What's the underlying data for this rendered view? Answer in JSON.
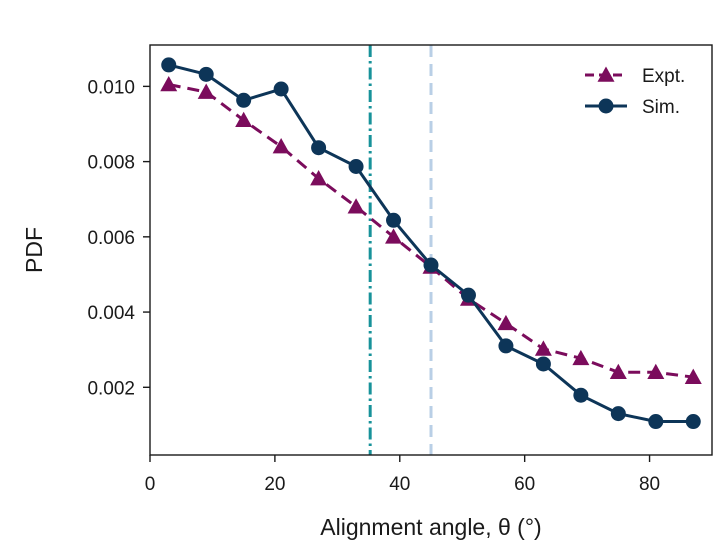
{
  "chart_data": {
    "type": "line",
    "title": "",
    "xlabel": "Alignment angle, θ (°)",
    "ylabel": "PDF",
    "xlim": [
      0,
      90
    ],
    "ylim": [
      0.0002,
      0.0111
    ],
    "xticks": [
      0,
      20,
      40,
      60,
      80
    ],
    "xtick_labels": [
      "0",
      "20",
      "40",
      "60",
      "80"
    ],
    "yticks": [
      0.002,
      0.004,
      0.006,
      0.008,
      0.01
    ],
    "ytick_labels": [
      "0.002",
      "0.004",
      "0.006",
      "0.008",
      "0.010"
    ],
    "grid": false,
    "legend_position": "top-right",
    "x": [
      3,
      9,
      15,
      21,
      27,
      33,
      39,
      45,
      51,
      57,
      63,
      69,
      75,
      81,
      87
    ],
    "series": [
      {
        "name": "Expt.",
        "color": "#7b0c5c",
        "line_style": "dashed",
        "marker": "triangle",
        "values": [
          0.01005,
          0.00985,
          0.0091,
          0.0084,
          0.00755,
          0.0068,
          0.006,
          0.0052,
          0.00435,
          0.0037,
          0.00302,
          0.00277,
          0.0024,
          0.0024,
          0.00227
        ]
      },
      {
        "name": "Sim.",
        "color": "#0d3558",
        "line_style": "solid",
        "marker": "circle",
        "values": [
          0.01057,
          0.01032,
          0.00963,
          0.00993,
          0.00837,
          0.00787,
          0.00644,
          0.00525,
          0.00445,
          0.0031,
          0.00262,
          0.00179,
          0.0013,
          0.00109,
          0.00109
        ]
      }
    ],
    "reference_lines": [
      {
        "x": 35.26,
        "color": "#17929a",
        "style": "dash-dot"
      },
      {
        "x": 45,
        "color": "#b9cfe6",
        "style": "dashed"
      }
    ]
  }
}
